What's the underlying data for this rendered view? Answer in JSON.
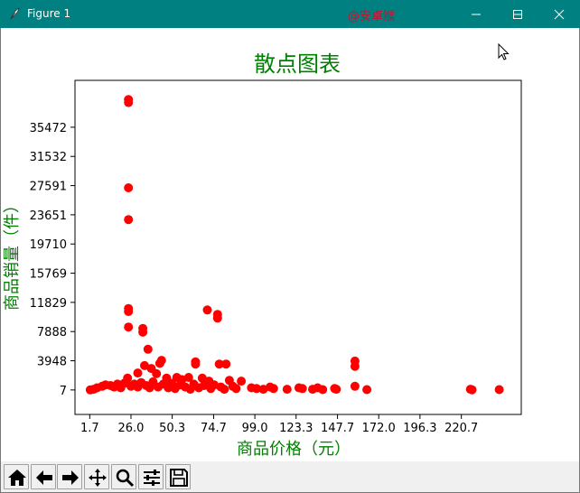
{
  "window": {
    "title": "Figure 1",
    "watermark": "@安卓猴"
  },
  "colors": {
    "titlebar": "#008080",
    "title_text": "#008000",
    "points": "#ff0000"
  },
  "toolbar": {
    "buttons": [
      "home-icon",
      "back-icon",
      "forward-icon",
      "pan-icon",
      "zoom-icon",
      "configure-subplots-icon",
      "save-icon"
    ]
  },
  "chart_data": {
    "type": "scatter",
    "title": "散点图表",
    "xlabel": "商品价格（元）",
    "ylabel": "商品销量（件）",
    "xticks": [
      "1.7",
      "26.0",
      "50.3",
      "74.7",
      "99.0",
      "123.3",
      "147.7",
      "172.0",
      "196.3",
      "220.7"
    ],
    "yticks": [
      "7",
      "3948",
      "7888",
      "11829",
      "15769",
      "19710",
      "23651",
      "27591",
      "31532",
      "35472"
    ],
    "xlim": [
      -7,
      256
    ],
    "ylim": [
      -3300,
      41800
    ],
    "grid": false,
    "marker": "o",
    "points": [
      {
        "x": 24.5,
        "y": 39200
      },
      {
        "x": 24.5,
        "y": 38800
      },
      {
        "x": 24.5,
        "y": 27300
      },
      {
        "x": 24.5,
        "y": 23000
      },
      {
        "x": 24.5,
        "y": 11000
      },
      {
        "x": 24.5,
        "y": 10600
      },
      {
        "x": 24.5,
        "y": 8500
      },
      {
        "x": 71,
        "y": 10800
      },
      {
        "x": 77,
        "y": 10200
      },
      {
        "x": 77,
        "y": 9700
      },
      {
        "x": 33,
        "y": 8300
      },
      {
        "x": 33,
        "y": 7800
      },
      {
        "x": 36,
        "y": 5500
      },
      {
        "x": 44,
        "y": 4000
      },
      {
        "x": 43,
        "y": 3600
      },
      {
        "x": 64,
        "y": 3800
      },
      {
        "x": 64,
        "y": 3500
      },
      {
        "x": 78,
        "y": 3500
      },
      {
        "x": 82,
        "y": 3500
      },
      {
        "x": 158,
        "y": 3900
      },
      {
        "x": 158,
        "y": 3200
      },
      {
        "x": 24,
        "y": 1600
      },
      {
        "x": 30,
        "y": 2300
      },
      {
        "x": 34,
        "y": 3300
      },
      {
        "x": 38,
        "y": 2900
      },
      {
        "x": 41,
        "y": 2200
      },
      {
        "x": 47,
        "y": 1600
      },
      {
        "x": 53,
        "y": 1700
      },
      {
        "x": 56,
        "y": 1400
      },
      {
        "x": 60,
        "y": 1700
      },
      {
        "x": 68,
        "y": 1600
      },
      {
        "x": 72,
        "y": 1200
      },
      {
        "x": 84,
        "y": 1300
      },
      {
        "x": 91,
        "y": 1200
      },
      {
        "x": 2,
        "y": 20
      },
      {
        "x": 4,
        "y": 100
      },
      {
        "x": 6,
        "y": 300
      },
      {
        "x": 9,
        "y": 500
      },
      {
        "x": 11,
        "y": 700
      },
      {
        "x": 14,
        "y": 600
      },
      {
        "x": 16,
        "y": 400
      },
      {
        "x": 18,
        "y": 800
      },
      {
        "x": 20,
        "y": 300
      },
      {
        "x": 22,
        "y": 900
      },
      {
        "x": 26,
        "y": 500
      },
      {
        "x": 28,
        "y": 800
      },
      {
        "x": 30,
        "y": 400
      },
      {
        "x": 32,
        "y": 1000
      },
      {
        "x": 35,
        "y": 600
      },
      {
        "x": 37,
        "y": 300
      },
      {
        "x": 39,
        "y": 1100
      },
      {
        "x": 42,
        "y": 400
      },
      {
        "x": 45,
        "y": 800
      },
      {
        "x": 48,
        "y": 300
      },
      {
        "x": 50,
        "y": 900
      },
      {
        "x": 52,
        "y": 200
      },
      {
        "x": 55,
        "y": 700
      },
      {
        "x": 58,
        "y": 400
      },
      {
        "x": 61,
        "y": 100
      },
      {
        "x": 63,
        "y": 800
      },
      {
        "x": 66,
        "y": 300
      },
      {
        "x": 69,
        "y": 600
      },
      {
        "x": 73,
        "y": 200
      },
      {
        "x": 75,
        "y": 700
      },
      {
        "x": 79,
        "y": 400
      },
      {
        "x": 81,
        "y": 100
      },
      {
        "x": 86,
        "y": 500
      },
      {
        "x": 88,
        "y": 200
      },
      {
        "x": 97,
        "y": 300
      },
      {
        "x": 100,
        "y": 200
      },
      {
        "x": 104,
        "y": 100
      },
      {
        "x": 108,
        "y": 400
      },
      {
        "x": 110,
        "y": 200
      },
      {
        "x": 118,
        "y": 100
      },
      {
        "x": 125,
        "y": 300
      },
      {
        "x": 127,
        "y": 200
      },
      {
        "x": 133,
        "y": 100
      },
      {
        "x": 136,
        "y": 300
      },
      {
        "x": 139,
        "y": 50
      },
      {
        "x": 146,
        "y": 200
      },
      {
        "x": 147,
        "y": 100
      },
      {
        "x": 158,
        "y": 500
      },
      {
        "x": 165,
        "y": 50
      },
      {
        "x": 226,
        "y": 100
      },
      {
        "x": 227,
        "y": 30
      },
      {
        "x": 243,
        "y": 50
      }
    ]
  }
}
